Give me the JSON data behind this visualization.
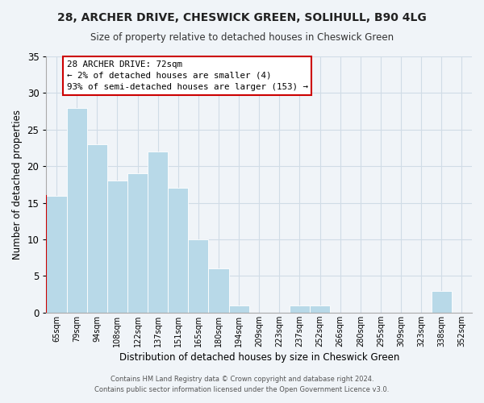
{
  "title": "28, ARCHER DRIVE, CHESWICK GREEN, SOLIHULL, B90 4LG",
  "subtitle": "Size of property relative to detached houses in Cheswick Green",
  "xlabel": "Distribution of detached houses by size in Cheswick Green",
  "ylabel": "Number of detached properties",
  "footer_line1": "Contains HM Land Registry data © Crown copyright and database right 2024.",
  "footer_line2": "Contains public sector information licensed under the Open Government Licence v3.0.",
  "bin_labels": [
    "65sqm",
    "79sqm",
    "94sqm",
    "108sqm",
    "122sqm",
    "137sqm",
    "151sqm",
    "165sqm",
    "180sqm",
    "194sqm",
    "209sqm",
    "223sqm",
    "237sqm",
    "252sqm",
    "266sqm",
    "280sqm",
    "295sqm",
    "309sqm",
    "323sqm",
    "338sqm",
    "352sqm"
  ],
  "bar_heights": [
    16,
    28,
    23,
    18,
    19,
    22,
    17,
    10,
    6,
    1,
    0,
    0,
    1,
    1,
    0,
    0,
    0,
    0,
    0,
    3,
    0
  ],
  "bar_color": "#b8d9e8",
  "highlight_bar_edge_color": "#cc0000",
  "ylim": [
    0,
    35
  ],
  "yticks": [
    0,
    5,
    10,
    15,
    20,
    25,
    30,
    35
  ],
  "ann_line1": "28 ARCHER DRIVE: 72sqm",
  "ann_line2": "← 2% of detached houses are smaller (4)",
  "ann_line3": "93% of semi-detached houses are larger (153) →",
  "grid_color": "#d0dce6",
  "background_color": "#f0f4f8",
  "spine_color": "#aaaaaa"
}
